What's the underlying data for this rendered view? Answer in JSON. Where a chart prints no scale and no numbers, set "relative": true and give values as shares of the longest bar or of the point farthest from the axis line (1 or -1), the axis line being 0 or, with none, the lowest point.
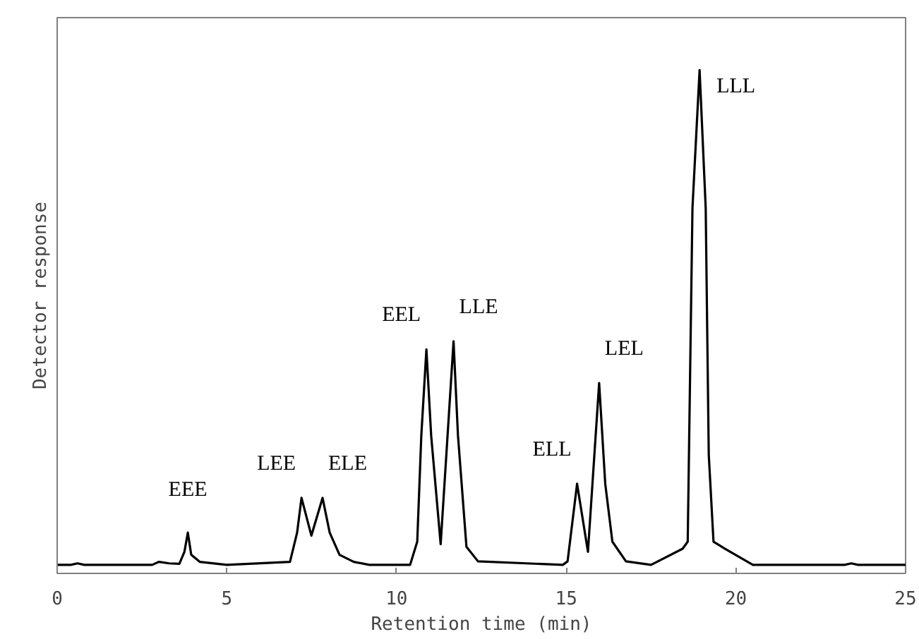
{
  "chart_data": {
    "type": "line",
    "relative": true,
    "xlabel": "Retention time (min)",
    "ylabel": "Detector response",
    "xlim": [
      0,
      25
    ],
    "xticks": [
      0,
      5,
      10,
      15,
      20,
      25
    ],
    "grid": false,
    "marker": "none",
    "line_style": "solid",
    "series": [
      {
        "color": "#000000",
        "x": [
          0,
          0.4,
          0.6,
          0.8,
          1.0,
          2.8,
          3.0,
          3.3,
          3.6,
          3.75,
          3.85,
          3.95,
          4.2,
          5.0,
          6.86,
          7.07,
          7.2,
          7.49,
          7.82,
          8.03,
          8.32,
          8.74,
          9.2,
          10.4,
          10.61,
          10.73,
          10.88,
          11.02,
          11.3,
          11.68,
          11.81,
          12.06,
          12.4,
          14.9,
          15.04,
          15.18,
          15.32,
          15.64,
          15.97,
          16.15,
          16.36,
          16.76,
          17.5,
          18.43,
          18.58,
          18.72,
          18.93,
          19.11,
          19.2,
          19.34,
          19.68,
          20.5,
          23.2,
          23.4,
          23.6,
          25
        ],
        "values": [
          0.017,
          0.017,
          0.02,
          0.017,
          0.017,
          0.017,
          0.023,
          0.02,
          0.019,
          0.043,
          0.081,
          0.037,
          0.023,
          0.017,
          0.023,
          0.081,
          0.15,
          0.075,
          0.15,
          0.081,
          0.037,
          0.023,
          0.017,
          0.017,
          0.063,
          0.274,
          0.445,
          0.274,
          0.058,
          0.461,
          0.274,
          0.053,
          0.024,
          0.017,
          0.024,
          0.101,
          0.178,
          0.043,
          0.378,
          0.178,
          0.063,
          0.024,
          0.017,
          0.049,
          0.063,
          0.726,
          1.0,
          0.726,
          0.236,
          0.063,
          0.049,
          0.017,
          0.017,
          0.02,
          0.017,
          0.017
        ]
      }
    ],
    "annotations": [
      {
        "text": "EEE",
        "x": 3.85,
        "y": 0.081
      },
      {
        "text": "LEE",
        "x": 7.2,
        "y": 0.15
      },
      {
        "text": "ELE",
        "x": 7.82,
        "y": 0.15
      },
      {
        "text": "EEL",
        "x": 10.88,
        "y": 0.445
      },
      {
        "text": "LLE",
        "x": 11.68,
        "y": 0.461
      },
      {
        "text": "ELL",
        "x": 15.32,
        "y": 0.178
      },
      {
        "text": "LEL",
        "x": 15.97,
        "y": 0.378
      },
      {
        "text": "LLL",
        "x": 18.93,
        "y": 1.0
      }
    ]
  }
}
